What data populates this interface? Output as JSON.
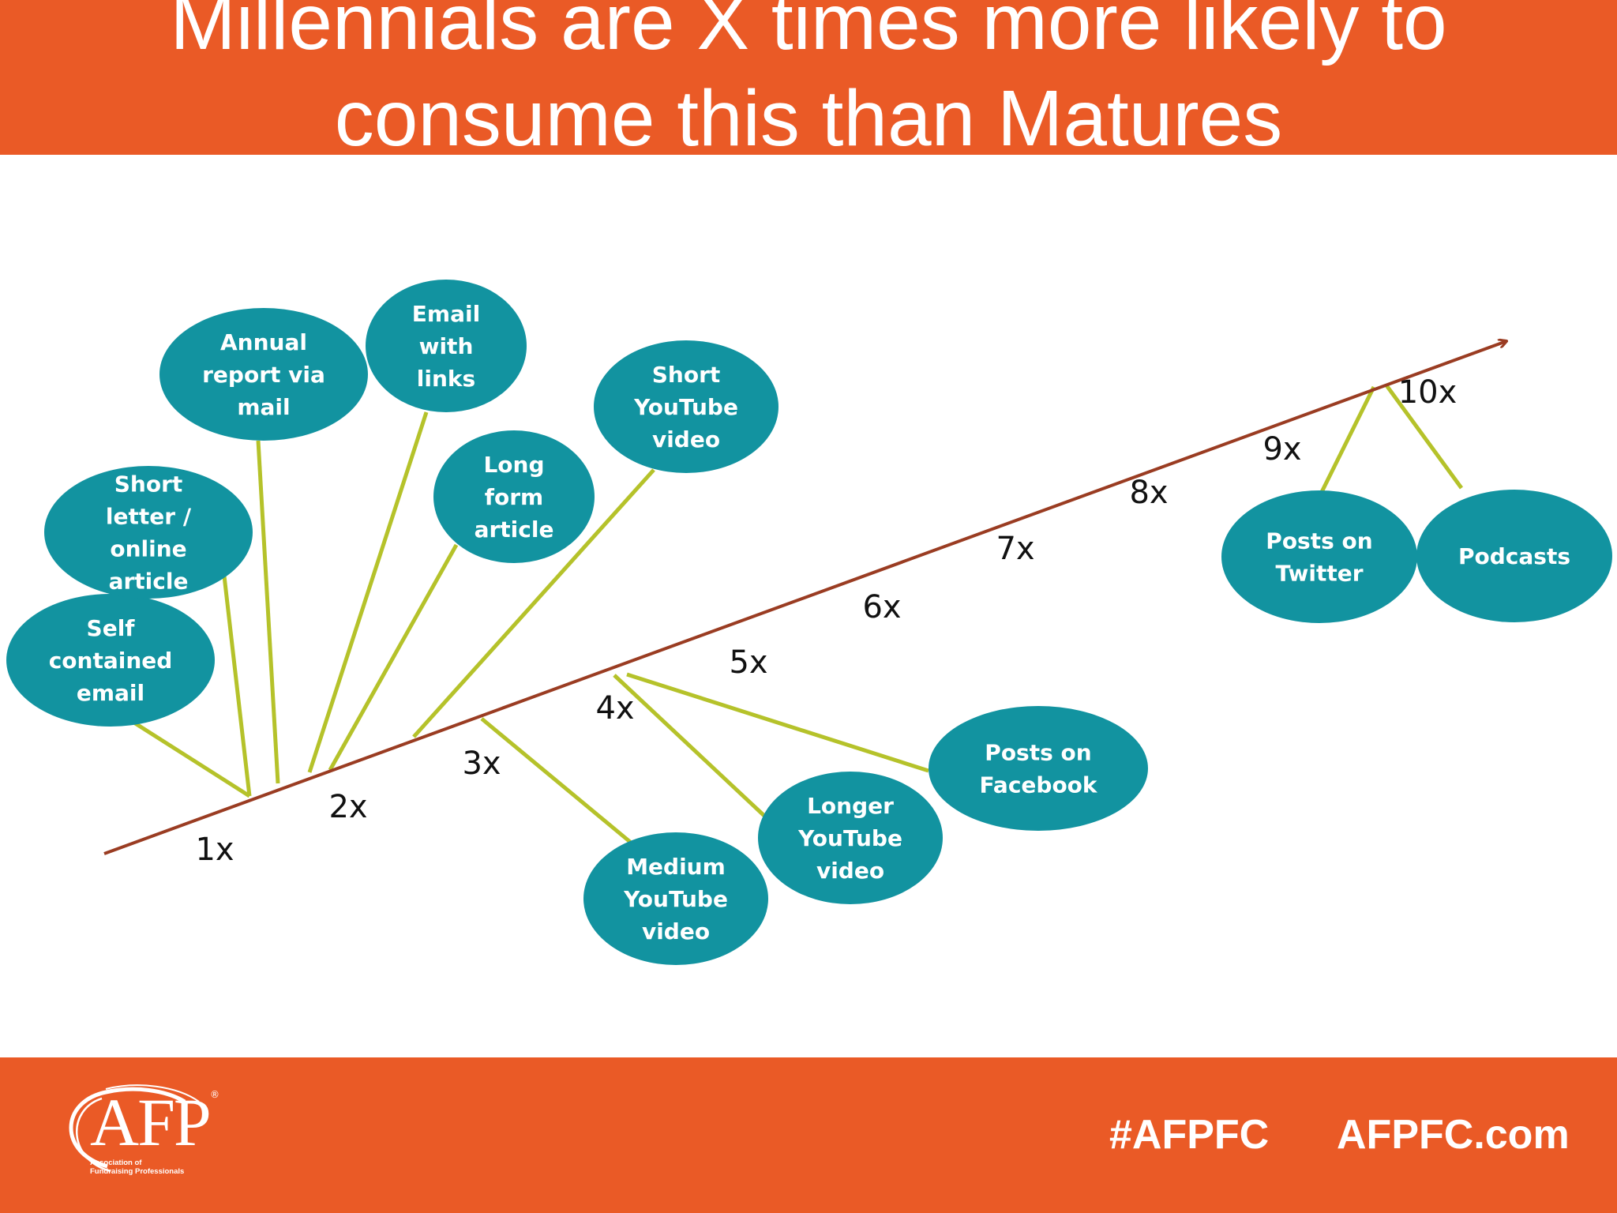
{
  "header": {
    "title_line1": "Millennials are X times more likely to",
    "title_line2": "consume this than Matures"
  },
  "colors": {
    "header_bg": "#ea5a26",
    "bubble": "#1293a0",
    "connector": "#b5c22a",
    "axis": "#9a3c22"
  },
  "axis_ticks": [
    "1x",
    "2x",
    "3x",
    "4x",
    "5x",
    "6x",
    "7x",
    "8x",
    "9x",
    "10x"
  ],
  "bubbles": [
    {
      "lines": [
        "Self",
        "contained",
        "email"
      ],
      "multiplier": 1
    },
    {
      "lines": [
        "Short",
        "letter /",
        "online",
        "article"
      ],
      "multiplier": 1
    },
    {
      "lines": [
        "Annual",
        "report via",
        "mail"
      ],
      "multiplier": 1
    },
    {
      "lines": [
        "Email",
        "with",
        "links"
      ],
      "multiplier": 2
    },
    {
      "lines": [
        "Long",
        "form",
        "article"
      ],
      "multiplier": 2
    },
    {
      "lines": [
        "Short",
        "YouTube",
        "video"
      ],
      "multiplier": 3
    },
    {
      "lines": [
        "Medium",
        "YouTube",
        "video"
      ],
      "multiplier": 3
    },
    {
      "lines": [
        "Longer",
        "YouTube",
        "video"
      ],
      "multiplier": 4
    },
    {
      "lines": [
        "Posts on",
        "Facebook"
      ],
      "multiplier": 4
    },
    {
      "lines": [
        "Posts on",
        "Twitter"
      ],
      "multiplier": 10
    },
    {
      "lines": [
        "Podcasts"
      ],
      "multiplier": 10
    }
  ],
  "footer": {
    "logo_letters": "AFP",
    "logo_reg": "®",
    "logo_sub_line1": "Association of",
    "logo_sub_line2": "Fundraising Professionals",
    "hashtag": "#AFPFC",
    "website": "AFPFC.com"
  }
}
